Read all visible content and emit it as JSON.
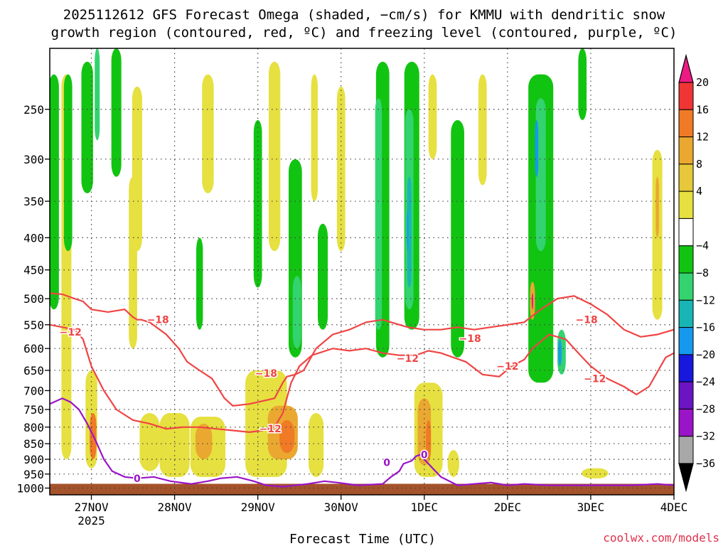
{
  "title": {
    "line1": "2025112612 GFS Forecast Omega (shaded, −cm/s) for KMMU with dendritic snow",
    "line2": "growth region (contoured, red, ºC) and freezing level (contoured, purple, ºC)"
  },
  "xlabel": "Forecast Time (UTC)",
  "credit": "coolwx.com/models",
  "chart_data": {
    "type": "heatmap",
    "title": "2025112612 GFS Forecast Omega (shaded, −cm/s) for KMMU with dendritic snow growth region (contoured, red, ºC) and freezing level (contoured, purple, ºC)",
    "xlabel": "Forecast Time (UTC)",
    "ylabel": "",
    "x_ticks": [
      {
        "value": 1.0,
        "label": "27NOV",
        "sublabel": "2025"
      },
      {
        "value": 2.0,
        "label": "28NOV"
      },
      {
        "value": 3.0,
        "label": "29NOV"
      },
      {
        "value": 4.0,
        "label": "30NOV"
      },
      {
        "value": 5.0,
        "label": "1DEC"
      },
      {
        "value": 6.0,
        "label": "2DEC"
      },
      {
        "value": 7.0,
        "label": "3DEC"
      },
      {
        "value": 8.0,
        "label": "4DEC"
      }
    ],
    "x_range": [
      0.5,
      8.0
    ],
    "y_axis": "pressure (hPa), inverted, log scale",
    "y_ticks": [
      250,
      300,
      350,
      400,
      450,
      500,
      550,
      600,
      650,
      700,
      750,
      800,
      850,
      900,
      950,
      1000
    ],
    "y_range": [
      200,
      1025
    ],
    "grid": true,
    "colorbar": {
      "levels": [
        -36,
        -32,
        -28,
        -24,
        -20,
        -16,
        -12,
        -8,
        -4,
        4,
        8,
        12,
        16,
        20
      ],
      "labels": [
        "20",
        "16",
        "12",
        "8",
        "4",
        "−4",
        "−8",
        "−12",
        "−16",
        "−20",
        "−24",
        "−28",
        "−32",
        "−36"
      ],
      "colors_top_to_bottom": [
        "#ee1a84",
        "#f03535",
        "#f07a25",
        "#eaa830",
        "#e6c83a",
        "#e6e040",
        "#ffffff",
        "#12c412",
        "#33d36f",
        "#18b5b5",
        "#1599ee",
        "#1818dd",
        "#6a14c4",
        "#9a14c8",
        "#a8a8a8",
        "#000000"
      ]
    },
    "omega_regions": [
      {
        "x": 0.55,
        "p_top": 220,
        "p_bot": 520,
        "w": 0.12,
        "level": -8
      },
      {
        "x": 0.72,
        "p_top": 220,
        "p_bot": 420,
        "w": 0.1,
        "level": -8
      },
      {
        "x": 0.95,
        "p_top": 210,
        "p_bot": 340,
        "w": 0.14,
        "level": -8
      },
      {
        "x": 1.07,
        "p_top": 200,
        "p_bot": 280,
        "w": 0.06,
        "level": -12
      },
      {
        "x": 1.3,
        "p_top": 200,
        "p_bot": 320,
        "w": 0.12,
        "level": -8
      },
      {
        "x": 2.3,
        "p_top": 400,
        "p_bot": 560,
        "w": 0.08,
        "level": -8
      },
      {
        "x": 3.0,
        "p_top": 260,
        "p_bot": 480,
        "w": 0.1,
        "level": -8
      },
      {
        "x": 3.45,
        "p_top": 300,
        "p_bot": 620,
        "w": 0.16,
        "level": -8
      },
      {
        "x": 3.47,
        "p_top": 460,
        "p_bot": 600,
        "w": 0.1,
        "level": -12
      },
      {
        "x": 3.78,
        "p_top": 380,
        "p_bot": 560,
        "w": 0.12,
        "level": -8
      },
      {
        "x": 4.5,
        "p_top": 210,
        "p_bot": 620,
        "w": 0.16,
        "level": -8
      },
      {
        "x": 4.45,
        "p_top": 240,
        "p_bot": 560,
        "w": 0.08,
        "level": -12
      },
      {
        "x": 4.85,
        "p_top": 210,
        "p_bot": 560,
        "w": 0.18,
        "level": -8
      },
      {
        "x": 4.82,
        "p_top": 250,
        "p_bot": 520,
        "w": 0.1,
        "level": -12
      },
      {
        "x": 4.82,
        "p_top": 320,
        "p_bot": 480,
        "w": 0.05,
        "level": -16
      },
      {
        "x": 4.8,
        "p_top": 360,
        "p_bot": 420,
        "w": 0.02,
        "level": -20
      },
      {
        "x": 5.4,
        "p_top": 260,
        "p_bot": 620,
        "w": 0.16,
        "level": -8
      },
      {
        "x": 6.4,
        "p_top": 220,
        "p_bot": 680,
        "w": 0.3,
        "level": -8
      },
      {
        "x": 6.4,
        "p_top": 240,
        "p_bot": 420,
        "w": 0.12,
        "level": -12
      },
      {
        "x": 6.35,
        "p_top": 260,
        "p_bot": 320,
        "w": 0.04,
        "level": -20
      },
      {
        "x": 6.65,
        "p_top": 560,
        "p_bot": 660,
        "w": 0.1,
        "level": -12
      },
      {
        "x": 6.63,
        "p_top": 580,
        "p_bot": 640,
        "w": 0.04,
        "level": -20
      },
      {
        "x": 6.9,
        "p_top": 200,
        "p_bot": 260,
        "w": 0.1,
        "level": -8
      }
    ],
    "ascent_regions": [
      {
        "x": 0.7,
        "p_top": 220,
        "p_bot": 900,
        "w": 0.12,
        "level": 4
      },
      {
        "x": 1.0,
        "p_top": 650,
        "p_bot": 930,
        "w": 0.14,
        "level": 4
      },
      {
        "x": 1.02,
        "p_top": 760,
        "p_bot": 900,
        "w": 0.08,
        "level": 12
      },
      {
        "x": 1.55,
        "p_top": 230,
        "p_bot": 420,
        "w": 0.12,
        "level": 4
      },
      {
        "x": 1.5,
        "p_top": 320,
        "p_bot": 600,
        "w": 0.1,
        "level": 4
      },
      {
        "x": 1.7,
        "p_top": 760,
        "p_bot": 940,
        "w": 0.24,
        "level": 4
      },
      {
        "x": 2.0,
        "p_top": 760,
        "p_bot": 960,
        "w": 0.36,
        "level": 4
      },
      {
        "x": 2.4,
        "p_top": 220,
        "p_bot": 340,
        "w": 0.14,
        "level": 4
      },
      {
        "x": 2.4,
        "p_top": 770,
        "p_bot": 960,
        "w": 0.42,
        "level": 4
      },
      {
        "x": 2.35,
        "p_top": 790,
        "p_bot": 900,
        "w": 0.2,
        "level": 8
      },
      {
        "x": 3.1,
        "p_top": 650,
        "p_bot": 960,
        "w": 0.5,
        "level": 4
      },
      {
        "x": 3.3,
        "p_top": 740,
        "p_bot": 900,
        "w": 0.36,
        "level": 8
      },
      {
        "x": 3.35,
        "p_top": 780,
        "p_bot": 880,
        "w": 0.18,
        "level": 12
      },
      {
        "x": 3.7,
        "p_top": 760,
        "p_bot": 960,
        "w": 0.18,
        "level": 4
      },
      {
        "x": 3.2,
        "p_top": 210,
        "p_bot": 420,
        "w": 0.14,
        "level": 4
      },
      {
        "x": 3.68,
        "p_top": 220,
        "p_bot": 350,
        "w": 0.08,
        "level": 4
      },
      {
        "x": 4.0,
        "p_top": 230,
        "p_bot": 420,
        "w": 0.1,
        "level": 4
      },
      {
        "x": 5.05,
        "p_top": 680,
        "p_bot": 960,
        "w": 0.34,
        "level": 4
      },
      {
        "x": 5.0,
        "p_top": 720,
        "p_bot": 920,
        "w": 0.16,
        "level": 8
      },
      {
        "x": 5.05,
        "p_top": 780,
        "p_bot": 900,
        "w": 0.06,
        "level": 12
      },
      {
        "x": 5.35,
        "p_top": 870,
        "p_bot": 960,
        "w": 0.14,
        "level": 4
      },
      {
        "x": 5.1,
        "p_top": 220,
        "p_bot": 300,
        "w": 0.1,
        "level": 4
      },
      {
        "x": 5.7,
        "p_top": 220,
        "p_bot": 330,
        "w": 0.1,
        "level": 4
      },
      {
        "x": 6.3,
        "p_top": 470,
        "p_bot": 540,
        "w": 0.06,
        "level": 8
      },
      {
        "x": 6.3,
        "p_top": 490,
        "p_bot": 520,
        "w": 0.02,
        "level": 20
      },
      {
        "x": 7.05,
        "p_top": 930,
        "p_bot": 965,
        "w": 0.32,
        "level": 4
      },
      {
        "x": 7.8,
        "p_top": 290,
        "p_bot": 540,
        "w": 0.12,
        "level": 4
      },
      {
        "x": 7.8,
        "p_top": 320,
        "p_bot": 400,
        "w": 0.04,
        "level": 8
      }
    ],
    "contours": [
      {
        "color": "#f04444",
        "label": "−18",
        "label_positions": [
          [
            1.8,
            540
          ],
          [
            3.1,
            657
          ],
          [
            5.55,
            578
          ],
          [
            6.95,
            540
          ]
        ],
        "points": [
          [
            0.5,
            490
          ],
          [
            0.65,
            492
          ],
          [
            0.8,
            500
          ],
          [
            0.9,
            505
          ],
          [
            1.0,
            520
          ],
          [
            1.2,
            525
          ],
          [
            1.4,
            520
          ],
          [
            1.5,
            535
          ],
          [
            1.55,
            540
          ],
          [
            1.6,
            540
          ],
          [
            1.7,
            545
          ],
          [
            1.9,
            570
          ],
          [
            2.05,
            600
          ],
          [
            2.15,
            630
          ],
          [
            2.3,
            650
          ],
          [
            2.45,
            670
          ],
          [
            2.6,
            720
          ],
          [
            2.7,
            740
          ],
          [
            2.9,
            735
          ],
          [
            3.1,
            725
          ],
          [
            3.2,
            720
          ],
          [
            3.3,
            680
          ],
          [
            3.35,
            665
          ],
          [
            3.45,
            660
          ],
          [
            3.55,
            650
          ],
          [
            3.7,
            600
          ],
          [
            3.9,
            570
          ],
          [
            4.1,
            560
          ],
          [
            4.3,
            545
          ],
          [
            4.5,
            540
          ],
          [
            4.6,
            545
          ],
          [
            4.8,
            555
          ],
          [
            5.0,
            560
          ],
          [
            5.2,
            560
          ],
          [
            5.4,
            555
          ],
          [
            5.6,
            560
          ],
          [
            5.8,
            555
          ],
          [
            6.0,
            550
          ],
          [
            6.2,
            545
          ],
          [
            6.4,
            520
          ],
          [
            6.6,
            500
          ],
          [
            6.8,
            495
          ],
          [
            7.0,
            510
          ],
          [
            7.2,
            530
          ],
          [
            7.4,
            560
          ],
          [
            7.6,
            575
          ],
          [
            7.8,
            570
          ],
          [
            7.9,
            565
          ],
          [
            8.0,
            560
          ]
        ]
      },
      {
        "color": "#f04444",
        "label": "−12",
        "label_positions": [
          [
            0.75,
            565
          ],
          [
            3.15,
            805
          ],
          [
            4.8,
            622
          ],
          [
            6.0,
            640
          ],
          [
            7.05,
            670
          ]
        ],
        "points": [
          [
            0.5,
            550
          ],
          [
            0.65,
            555
          ],
          [
            0.8,
            560
          ],
          [
            0.9,
            580
          ],
          [
            1.0,
            640
          ],
          [
            1.15,
            700
          ],
          [
            1.3,
            750
          ],
          [
            1.5,
            780
          ],
          [
            1.7,
            790
          ],
          [
            1.9,
            805
          ],
          [
            2.1,
            800
          ],
          [
            2.3,
            800
          ],
          [
            2.5,
            805
          ],
          [
            2.7,
            810
          ],
          [
            2.9,
            815
          ],
          [
            3.05,
            810
          ],
          [
            3.2,
            800
          ],
          [
            3.3,
            760
          ],
          [
            3.4,
            680
          ],
          [
            3.5,
            640
          ],
          [
            3.65,
            615
          ],
          [
            3.9,
            600
          ],
          [
            4.1,
            605
          ],
          [
            4.3,
            600
          ],
          [
            4.5,
            610
          ],
          [
            4.7,
            615
          ],
          [
            4.9,
            615
          ],
          [
            5.05,
            605
          ],
          [
            5.2,
            610
          ],
          [
            5.35,
            620
          ],
          [
            5.5,
            630
          ],
          [
            5.7,
            660
          ],
          [
            5.9,
            665
          ],
          [
            6.05,
            640
          ],
          [
            6.2,
            625
          ],
          [
            6.3,
            600
          ],
          [
            6.5,
            570
          ],
          [
            6.7,
            580
          ],
          [
            6.9,
            620
          ],
          [
            7.0,
            640
          ],
          [
            7.2,
            670
          ],
          [
            7.4,
            690
          ],
          [
            7.55,
            710
          ],
          [
            7.7,
            690
          ],
          [
            7.9,
            620
          ],
          [
            8.0,
            610
          ]
        ]
      },
      {
        "color": "#9a14c8",
        "label": "0",
        "label_positions": [
          [
            1.55,
            965
          ],
          [
            4.55,
            910
          ],
          [
            5.0,
            885
          ]
        ],
        "points": [
          [
            0.5,
            735
          ],
          [
            0.65,
            720
          ],
          [
            0.75,
            730
          ],
          [
            0.85,
            750
          ],
          [
            0.95,
            790
          ],
          [
            1.05,
            840
          ],
          [
            1.15,
            900
          ],
          [
            1.25,
            940
          ],
          [
            1.4,
            960
          ],
          [
            1.55,
            965
          ],
          [
            1.75,
            960
          ],
          [
            1.95,
            975
          ],
          [
            2.2,
            985
          ],
          [
            2.4,
            975
          ],
          [
            2.55,
            965
          ],
          [
            2.75,
            960
          ],
          [
            2.95,
            975
          ],
          [
            3.1,
            990
          ],
          [
            3.3,
            995
          ],
          [
            3.6,
            985
          ],
          [
            3.8,
            975
          ],
          [
            3.95,
            980
          ],
          [
            4.2,
            990
          ],
          [
            4.5,
            985
          ],
          [
            4.6,
            960
          ],
          [
            4.7,
            940
          ],
          [
            4.75,
            915
          ],
          [
            4.85,
            905
          ],
          [
            4.9,
            890
          ],
          [
            4.95,
            885
          ],
          [
            5.0,
            900
          ],
          [
            5.1,
            930
          ],
          [
            5.2,
            960
          ],
          [
            5.4,
            990
          ],
          [
            5.6,
            985
          ],
          [
            5.8,
            980
          ],
          [
            6.0,
            990
          ],
          [
            6.2,
            985
          ],
          [
            6.5,
            990
          ],
          [
            7.0,
            990
          ],
          [
            7.5,
            990
          ],
          [
            7.8,
            985
          ],
          [
            8.0,
            990
          ]
        ]
      }
    ]
  }
}
